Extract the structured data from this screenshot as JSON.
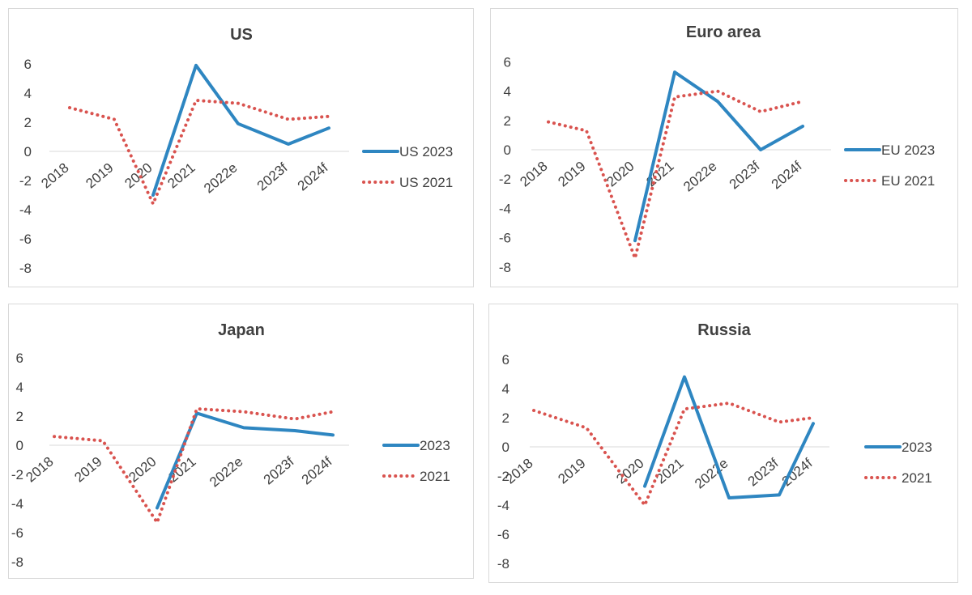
{
  "chart_data": [
    {
      "type": "line",
      "title": "US",
      "categories": [
        "2018",
        "2019",
        "2020",
        "2021",
        "2022e",
        "2023f",
        "2024f"
      ],
      "ylim": [
        -8,
        6
      ],
      "yticks": [
        6,
        4,
        2,
        0,
        -2,
        -4,
        -6,
        -8
      ],
      "grid": false,
      "legend": "right",
      "series": [
        {
          "name": "US 2023",
          "style": "solid",
          "color": "#2e86c1",
          "values": [
            null,
            null,
            -3.0,
            5.9,
            1.9,
            0.5,
            1.6
          ]
        },
        {
          "name": "US 2021",
          "style": "dotted",
          "color": "#d9534f",
          "values": [
            3.0,
            2.2,
            -3.6,
            3.5,
            3.3,
            2.2,
            2.4
          ]
        }
      ]
    },
    {
      "type": "line",
      "title": "Euro area",
      "categories": [
        "2018",
        "2019",
        "2020",
        "2021",
        "2022e",
        "2023f",
        "2024f"
      ],
      "ylim": [
        -8,
        6
      ],
      "yticks": [
        6,
        4,
        2,
        0,
        -2,
        -4,
        -6,
        -8
      ],
      "grid": false,
      "legend": "right",
      "series": [
        {
          "name": "EU 2023",
          "style": "solid",
          "color": "#2e86c1",
          "values": [
            null,
            null,
            -6.2,
            5.3,
            3.3,
            0.0,
            1.6
          ]
        },
        {
          "name": "EU 2021",
          "style": "dotted",
          "color": "#d9534f",
          "values": [
            1.9,
            1.3,
            -7.4,
            3.6,
            4.0,
            2.6,
            3.3
          ]
        }
      ]
    },
    {
      "type": "line",
      "title": "Japan",
      "categories": [
        "2018",
        "2019",
        "2020",
        "2021",
        "2022e",
        "2023f",
        "2024f"
      ],
      "ylim": [
        -8,
        6
      ],
      "yticks": [
        6,
        4,
        2,
        0,
        -2,
        -4,
        -6,
        -8
      ],
      "grid": false,
      "legend": "right",
      "series": [
        {
          "name": "2023",
          "style": "solid",
          "color": "#2e86c1",
          "values": [
            null,
            null,
            -4.3,
            2.2,
            1.2,
            1.0,
            0.7
          ]
        },
        {
          "name": "2021",
          "style": "dotted",
          "color": "#d9534f",
          "values": [
            0.6,
            0.3,
            -5.3,
            2.5,
            2.3,
            1.8,
            2.3
          ]
        }
      ]
    },
    {
      "type": "line",
      "title": "Russia",
      "categories": [
        "2018",
        "2019",
        "2020",
        "2021",
        "2022e",
        "2023f",
        "2024f"
      ],
      "ylim": [
        -8,
        6
      ],
      "yticks": [
        6,
        4,
        2,
        0,
        -2,
        -4,
        -6,
        -8
      ],
      "grid": false,
      "legend": "right",
      "series": [
        {
          "name": "2023",
          "style": "solid",
          "color": "#2e86c1",
          "values": [
            null,
            null,
            -2.7,
            4.8,
            -3.5,
            -3.3,
            1.6
          ]
        },
        {
          "name": "2021",
          "style": "dotted",
          "color": "#d9534f",
          "values": [
            2.5,
            1.3,
            -4.0,
            2.6,
            3.0,
            1.7,
            2.0
          ]
        }
      ]
    }
  ]
}
